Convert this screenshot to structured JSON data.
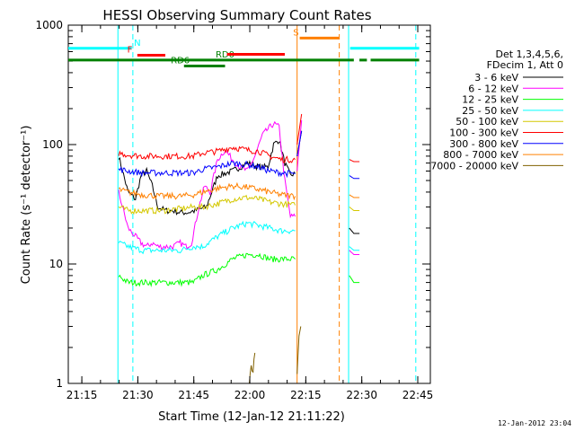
{
  "chart_data": {
    "type": "line",
    "title": "HESSI Observing Summary Count Rates",
    "xlabel": "Start Time (12-Jan-12 21:11:22)",
    "ylabel": "Count Rate (s⁻¹ detector⁻¹)",
    "timestamp": "12-Jan-2012 23:04",
    "x_unit": "minutes since 21:11:22",
    "xlim": [
      0,
      97
    ],
    "ylim": [
      1,
      1000
    ],
    "y_scale": "log",
    "x_ticks": [
      "21:15",
      "21:30",
      "21:45",
      "22:00",
      "22:15",
      "22:30",
      "22:45"
    ],
    "x_tick_values": [
      3.63,
      18.63,
      33.63,
      48.63,
      63.63,
      78.63,
      93.63
    ],
    "y_ticks": [
      "1",
      "10",
      "100",
      "1000"
    ],
    "y_tick_values": [
      1,
      10,
      100,
      1000
    ],
    "legend": {
      "header": [
        "Det 1,3,4,5,6,",
        "FDecim 1, Att 0"
      ],
      "placement": "right",
      "entries": [
        {
          "label": "3 - 6 keV",
          "color": "#000000"
        },
        {
          "label": "6 - 12 keV",
          "color": "#ff00ff"
        },
        {
          "label": "12 - 25 keV",
          "color": "#00ff00"
        },
        {
          "label": "25 - 50 keV",
          "color": "#00ffff"
        },
        {
          "label": "50 - 100 keV",
          "color": "#d4c800"
        },
        {
          "label": "100 - 300 keV",
          "color": "#ff0000"
        },
        {
          "label": "300 - 800 keV",
          "color": "#0000ff"
        },
        {
          "label": "800 - 7000 keV",
          "color": "#ff8000"
        },
        {
          "label": "7000 - 20000 keV",
          "color": "#806000"
        }
      ]
    },
    "flags": [
      {
        "label": "N",
        "color": "#00ffff",
        "segments": [
          [
            0,
            17
          ],
          [
            75.5,
            94
          ]
        ],
        "level": 640,
        "label_at": 18.5
      },
      {
        "label": "F",
        "color": "#ff0000",
        "segments": [
          [
            18.5,
            26
          ]
        ],
        "level": 560,
        "label_at": 16.5
      },
      {
        "label": "RD0",
        "color": "#008000",
        "segments": [
          [
            0,
            76.5
          ],
          [
            78,
            80
          ],
          [
            81,
            94
          ]
        ],
        "level": 510,
        "label_at": 42
      },
      {
        "label": "RD6",
        "color": "#008000",
        "segments": [
          [
            31,
            42
          ]
        ],
        "level": 455,
        "label_at": 30
      },
      {
        "label": "S",
        "color": "#ff8000",
        "segments": [
          [
            62,
            72.5
          ]
        ],
        "level": 780,
        "label_at": 61
      },
      {
        "label": "",
        "color": "#ff0000",
        "segments": [
          [
            42.5,
            58
          ]
        ],
        "level": 570,
        "label_at": 0
      }
    ],
    "vertical_lines": [
      {
        "x": 17.3,
        "color": "#00ffff",
        "style": "dashed"
      },
      {
        "x": 72.6,
        "color": "#ff8000",
        "style": "dashed"
      },
      {
        "x": 93.1,
        "color": "#00ffff",
        "style": "dashed"
      },
      {
        "x": 13.3,
        "color": "#00ffff",
        "style": "solid"
      },
      {
        "x": 75.1,
        "color": "#00ffff",
        "style": "solid"
      },
      {
        "x": 61.3,
        "color": "#ff8000",
        "style": "solid"
      }
    ],
    "series": [
      {
        "name": "3 - 6 keV",
        "color": "#000000",
        "segments": [
          {
            "x": [
              13.5,
              16,
              18,
              19.5,
              21,
              22.5,
              24,
              26,
              28,
              30,
              32,
              34,
              37,
              40,
              44,
              48,
              51,
              53.5,
              55,
              56.5,
              58,
              59.5,
              60.8
            ],
            "y": [
              80,
              40,
              35,
              55,
              60,
              45,
              30,
              28,
              28,
              27,
              27,
              28,
              30,
              55,
              60,
              70,
              65,
              65,
              100,
              110,
              70,
              55,
              58
            ]
          },
          {
            "x": [
              61.3,
              62.5
            ],
            "y": [
              80,
              130
            ]
          },
          {
            "x": [
              75.3,
              76.5,
              78
            ],
            "y": [
              20,
              18,
              18
            ]
          }
        ]
      },
      {
        "name": "6 - 12 keV",
        "color": "#ff00ff",
        "segments": [
          {
            "x": [
              13.5,
              16,
              18,
              19.5,
              21,
              22.5,
              24,
              26,
              28,
              30,
              31.5,
              33,
              35,
              36.5,
              38,
              40,
              42,
              44,
              46,
              48,
              50,
              52,
              53.5,
              55,
              56.5,
              58,
              59.5,
              60.8
            ],
            "y": [
              40,
              20,
              17,
              15,
              14,
              15,
              14,
              14,
              14,
              15,
              14,
              15,
              30,
              45,
              40,
              75,
              90,
              75,
              65,
              60,
              80,
              120,
              135,
              150,
              140,
              50,
              25,
              25
            ]
          },
          {
            "x": [
              61.3,
              62.5
            ],
            "y": [
              60,
              160
            ]
          },
          {
            "x": [
              75.3,
              76.5,
              78
            ],
            "y": [
              13,
              12,
              12
            ]
          }
        ]
      },
      {
        "name": "12 - 25 keV",
        "color": "#00ff00",
        "segments": [
          {
            "x": [
              13.5,
              16,
              20,
              25,
              30,
              33.5,
              36,
              40,
              44,
              48,
              51,
              54,
              57,
              60.8
            ],
            "y": [
              8,
              7,
              7,
              7,
              7,
              7,
              8,
              9,
              11,
              12,
              12,
              11,
              11,
              11
            ]
          },
          {
            "x": [
              75.3,
              76.5,
              78
            ],
            "y": [
              8,
              7,
              7
            ]
          }
        ]
      },
      {
        "name": "25 - 50 keV",
        "color": "#00ffff",
        "segments": [
          {
            "x": [
              13.5,
              16,
              20,
              25,
              30,
              33.5,
              36,
              40,
              44,
              48,
              51,
              54,
              57,
              60.8
            ],
            "y": [
              15,
              14,
              13,
              13,
              13,
              14,
              14,
              17,
              20,
              22,
              21,
              20,
              19,
              19
            ]
          },
          {
            "x": [
              75.3,
              76.5,
              78
            ],
            "y": [
              14,
              13,
              13
            ]
          }
        ]
      },
      {
        "name": "50 - 100 keV",
        "color": "#d4c800",
        "segments": [
          {
            "x": [
              13.5,
              16,
              20,
              25,
              30,
              33.5,
              36,
              40,
              44,
              48,
              51,
              54,
              57,
              60.8
            ],
            "y": [
              30,
              28,
              28,
              28,
              29,
              30,
              30,
              32,
              35,
              36,
              35,
              33,
              32,
              31
            ]
          },
          {
            "x": [
              75.3,
              76.5,
              78
            ],
            "y": [
              30,
              28,
              28
            ]
          }
        ]
      },
      {
        "name": "100 - 300 keV",
        "color": "#ff0000",
        "segments": [
          {
            "x": [
              13.5,
              16,
              20,
              25,
              30,
              33.5,
              36,
              40,
              44,
              48,
              51,
              54,
              57,
              60.8
            ],
            "y": [
              85,
              82,
              80,
              80,
              80,
              80,
              85,
              88,
              95,
              90,
              88,
              80,
              75,
              75
            ]
          },
          {
            "x": [
              61.3,
              62.5
            ],
            "y": [
              100,
              180
            ]
          },
          {
            "x": [
              75.3,
              76.5,
              78
            ],
            "y": [
              75,
              72,
              72
            ]
          }
        ]
      },
      {
        "name": "300 - 800 keV",
        "color": "#0000ff",
        "segments": [
          {
            "x": [
              13.5,
              16,
              20,
              25,
              30,
              33.5,
              36,
              40,
              44,
              48,
              51,
              54,
              57,
              60.8
            ],
            "y": [
              62,
              60,
              58,
              58,
              58,
              58,
              62,
              65,
              70,
              68,
              65,
              60,
              58,
              57
            ]
          },
          {
            "x": [
              61.3,
              62.5
            ],
            "y": [
              80,
              130
            ]
          },
          {
            "x": [
              75.3,
              76.5,
              78
            ],
            "y": [
              55,
              52,
              52
            ]
          }
        ]
      },
      {
        "name": "800 - 7000 keV",
        "color": "#ff8000",
        "segments": [
          {
            "x": [
              13.5,
              16,
              20,
              25,
              30,
              33.5,
              36,
              40,
              44,
              48,
              51,
              54,
              57,
              60.8
            ],
            "y": [
              42,
              40,
              38,
              37,
              37,
              38,
              40,
              43,
              45,
              44,
              42,
              40,
              38,
              37
            ]
          },
          {
            "x": [
              75.3,
              76.5,
              78
            ],
            "y": [
              38,
              36,
              36
            ]
          }
        ]
      },
      {
        "name": "7000 - 20000 keV",
        "color": "#806000",
        "segments": [
          {
            "x": [
              48.5,
              49,
              49.5,
              50
            ],
            "y": [
              1.05,
              1.4,
              1.3,
              1.8
            ]
          },
          {
            "x": [
              61.3,
              61.8,
              62.3
            ],
            "y": [
              1.2,
              2.5,
              3
            ]
          }
        ]
      }
    ]
  }
}
